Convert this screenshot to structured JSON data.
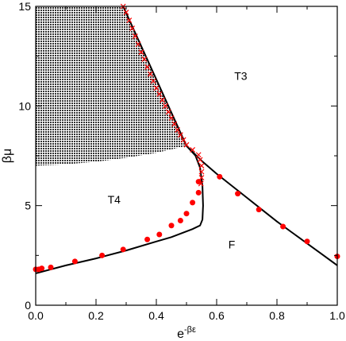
{
  "chart_data": {
    "type": "scatter",
    "xlabel_base": "e",
    "xlabel_sup": "-βε",
    "ylabel": "βμ",
    "xlim": [
      0.0,
      1.0
    ],
    "ylim": [
      0,
      15
    ],
    "xticks": [
      "0.0",
      "0.2",
      "0.4",
      "0.6",
      "0.8",
      "1.0"
    ],
    "yticks": [
      "0",
      "5",
      "10",
      "15"
    ],
    "grid": false,
    "shaded_region": {
      "fill": "#333333",
      "upper_left_boundary": [
        [
          0.0,
          15.0
        ],
        [
          0.29,
          15.0
        ]
      ],
      "lower_boundary": [
        [
          0.0,
          7.0
        ],
        [
          0.1,
          7.07
        ],
        [
          0.2,
          7.2
        ],
        [
          0.3,
          7.4
        ],
        [
          0.4,
          7.65
        ],
        [
          0.5,
          8.0
        ]
      ]
    },
    "series": [
      {
        "style": "line",
        "color": "#000000",
        "points": [
          [
            0.5,
            8.0
          ],
          [
            0.53,
            7.5
          ],
          [
            0.545,
            6.9
          ],
          [
            0.553,
            6.0
          ],
          [
            0.555,
            5.0
          ],
          [
            0.553,
            4.3
          ],
          [
            0.545,
            4.0
          ],
          [
            0.52,
            3.82
          ],
          [
            0.45,
            3.42
          ],
          [
            0.4,
            3.2
          ],
          [
            0.3,
            2.75
          ],
          [
            0.2,
            2.35
          ],
          [
            0.1,
            2.0
          ],
          [
            0.0,
            1.6
          ]
        ]
      },
      {
        "style": "line",
        "color": "#000000",
        "points": [
          [
            0.5,
            8.0
          ],
          [
            0.29,
            15.0
          ]
        ]
      },
      {
        "style": "line",
        "color": "#000000",
        "points": [
          [
            0.5,
            8.0
          ],
          [
            0.55,
            7.25
          ],
          [
            0.6,
            6.6
          ],
          [
            0.65,
            6.0
          ],
          [
            0.7,
            5.4
          ],
          [
            0.75,
            4.8
          ],
          [
            0.8,
            4.2
          ],
          [
            0.85,
            3.65
          ],
          [
            0.9,
            3.1
          ],
          [
            0.95,
            2.55
          ],
          [
            1.0,
            2.0
          ]
        ]
      },
      {
        "style": "markers",
        "marker": "circle",
        "color": "#ff0000",
        "points": [
          [
            0.0,
            1.8
          ],
          [
            0.01,
            1.8
          ],
          [
            0.02,
            1.85
          ],
          [
            0.05,
            1.9
          ],
          [
            0.13,
            2.2
          ],
          [
            0.22,
            2.5
          ],
          [
            0.29,
            2.8
          ],
          [
            0.37,
            3.3
          ],
          [
            0.41,
            3.55
          ],
          [
            0.45,
            4.0
          ],
          [
            0.48,
            4.25
          ],
          [
            0.5,
            4.6
          ],
          [
            0.52,
            5.15
          ],
          [
            0.54,
            5.65
          ],
          [
            0.54,
            6.2
          ],
          [
            0.61,
            6.45
          ],
          [
            0.67,
            5.6
          ],
          [
            0.74,
            4.8
          ],
          [
            0.82,
            3.95
          ],
          [
            0.9,
            3.2
          ],
          [
            1.0,
            2.45
          ]
        ]
      },
      {
        "style": "markers",
        "marker": "x",
        "color": "#ff0000",
        "points": [
          [
            0.29,
            15.0
          ],
          [
            0.3,
            14.7
          ],
          [
            0.31,
            14.3
          ],
          [
            0.32,
            13.9
          ],
          [
            0.33,
            13.5
          ],
          [
            0.34,
            13.1
          ],
          [
            0.35,
            12.7
          ],
          [
            0.36,
            12.35
          ],
          [
            0.37,
            11.95
          ],
          [
            0.38,
            11.6
          ],
          [
            0.39,
            11.25
          ],
          [
            0.4,
            10.9
          ],
          [
            0.41,
            10.6
          ],
          [
            0.42,
            10.3
          ],
          [
            0.43,
            10.0
          ],
          [
            0.44,
            9.7
          ],
          [
            0.45,
            9.4
          ],
          [
            0.46,
            9.1
          ],
          [
            0.47,
            8.8
          ],
          [
            0.48,
            8.55
          ],
          [
            0.49,
            8.3
          ],
          [
            0.5,
            8.05
          ],
          [
            0.52,
            7.8
          ],
          [
            0.54,
            7.55
          ],
          [
            0.545,
            7.3
          ],
          [
            0.55,
            7.0
          ],
          [
            0.55,
            6.7
          ],
          [
            0.55,
            6.4
          ],
          [
            0.548,
            6.1
          ]
        ]
      }
    ],
    "annotations": [
      {
        "text": "T3",
        "x": 0.68,
        "y": 11.3
      },
      {
        "text": "T4",
        "x": 0.26,
        "y": 5.1
      },
      {
        "text": "F",
        "x": 0.65,
        "y": 2.85
      }
    ]
  }
}
